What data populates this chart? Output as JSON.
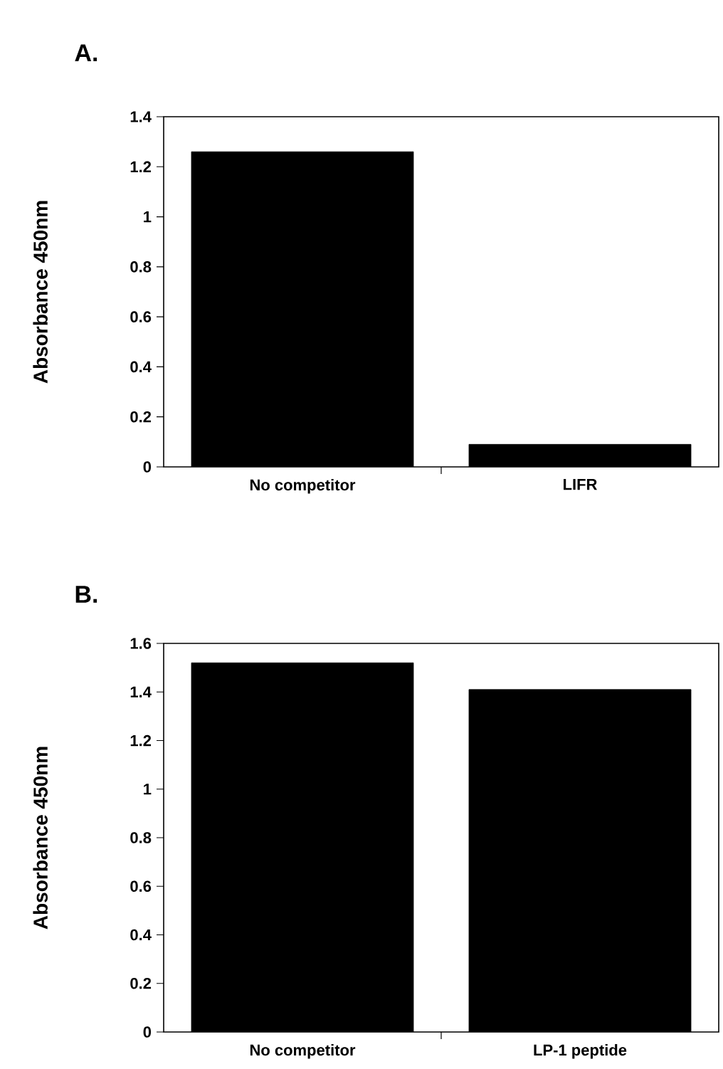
{
  "chart_data": [
    {
      "type": "bar",
      "title": "A.",
      "ylabel": "Absorbance 450nm",
      "categories": [
        "No competitor",
        "LIFR"
      ],
      "values": [
        1.26,
        0.09
      ],
      "color": "#000000",
      "ylim": [
        0,
        1.4
      ],
      "yticks": [
        0,
        0.2,
        0.4,
        0.6,
        0.8,
        1,
        1.2,
        1.4
      ]
    },
    {
      "type": "bar",
      "title": "B.",
      "ylabel": "Absorbance 450nm",
      "categories": [
        "No competitor",
        "LP-1 peptide"
      ],
      "values": [
        1.52,
        1.41
      ],
      "color": "#000000",
      "ylim": [
        0,
        1.6
      ],
      "yticks": [
        0,
        0.2,
        0.4,
        0.6,
        0.8,
        1,
        1.2,
        1.4,
        1.6
      ]
    }
  ]
}
